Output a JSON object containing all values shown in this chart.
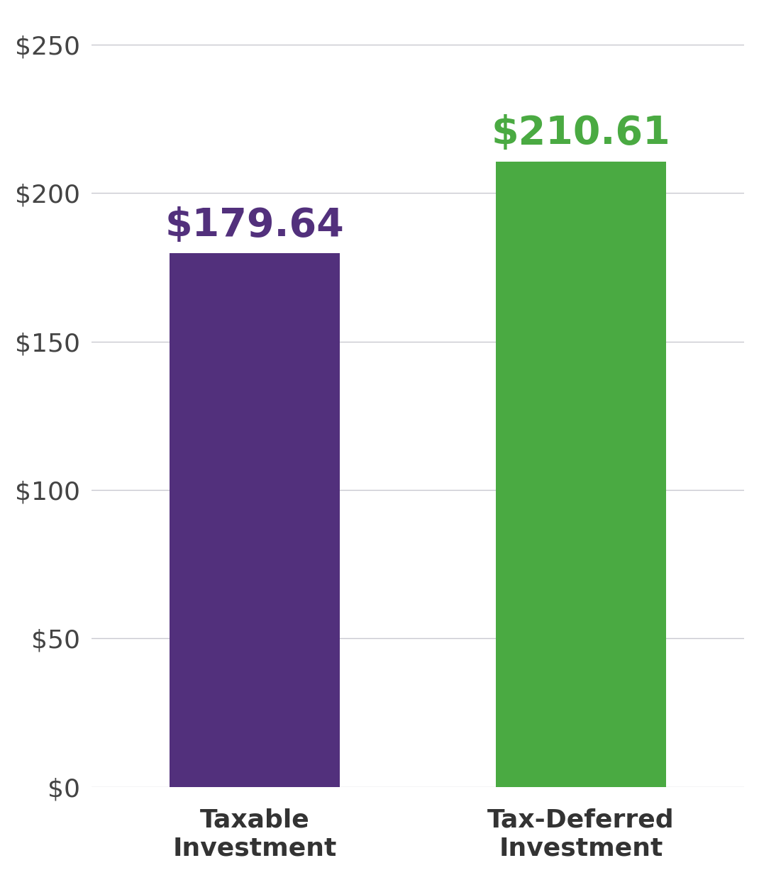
{
  "categories": [
    "Taxable\nInvestment",
    "Tax-Deferred\nInvestment"
  ],
  "values": [
    179.64,
    210.61
  ],
  "bar_colors": [
    "#52307c",
    "#4aaa42"
  ],
  "value_labels": [
    "$179.64",
    "$210.61"
  ],
  "value_label_colors": [
    "#52307c",
    "#4aaa42"
  ],
  "yticks": [
    0,
    50,
    100,
    150,
    200,
    250
  ],
  "ytick_labels": [
    "$0",
    "$50",
    "$100",
    "$150",
    "$200",
    "$250"
  ],
  "ylim": [
    0,
    260
  ],
  "background_color": "#ffffff",
  "grid_color": "#c8c8d0",
  "tick_label_fontsize": 26,
  "value_label_fontsize": 40,
  "category_label_fontsize": 26,
  "bar_width": 0.52,
  "positions": [
    0,
    1
  ]
}
